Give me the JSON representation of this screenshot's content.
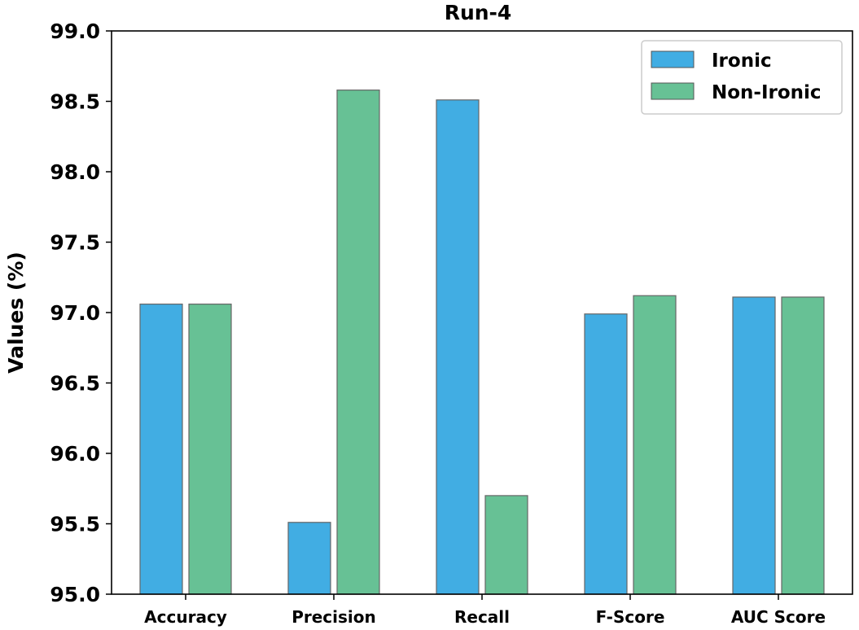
{
  "chart_data": {
    "type": "bar",
    "title": "Run-4",
    "xlabel": "",
    "ylabel": "Values (%)",
    "ylim": [
      95.0,
      99.0
    ],
    "yticks": [
      "95.0",
      "95.5",
      "96.0",
      "96.5",
      "97.0",
      "97.5",
      "98.0",
      "98.5",
      "99.0"
    ],
    "categories": [
      "Accuracy",
      "Precision",
      "Recall",
      "F-Score",
      "AUC Score"
    ],
    "series": [
      {
        "name": "Ironic",
        "color": "#41ade3",
        "values": [
          97.06,
          95.51,
          98.51,
          96.99,
          97.11
        ]
      },
      {
        "name": "Non-Ironic",
        "color": "#67c195",
        "values": [
          97.06,
          98.58,
          95.7,
          97.12,
          97.11
        ]
      }
    ],
    "legend": {
      "position": "top-right"
    },
    "grid": false
  }
}
